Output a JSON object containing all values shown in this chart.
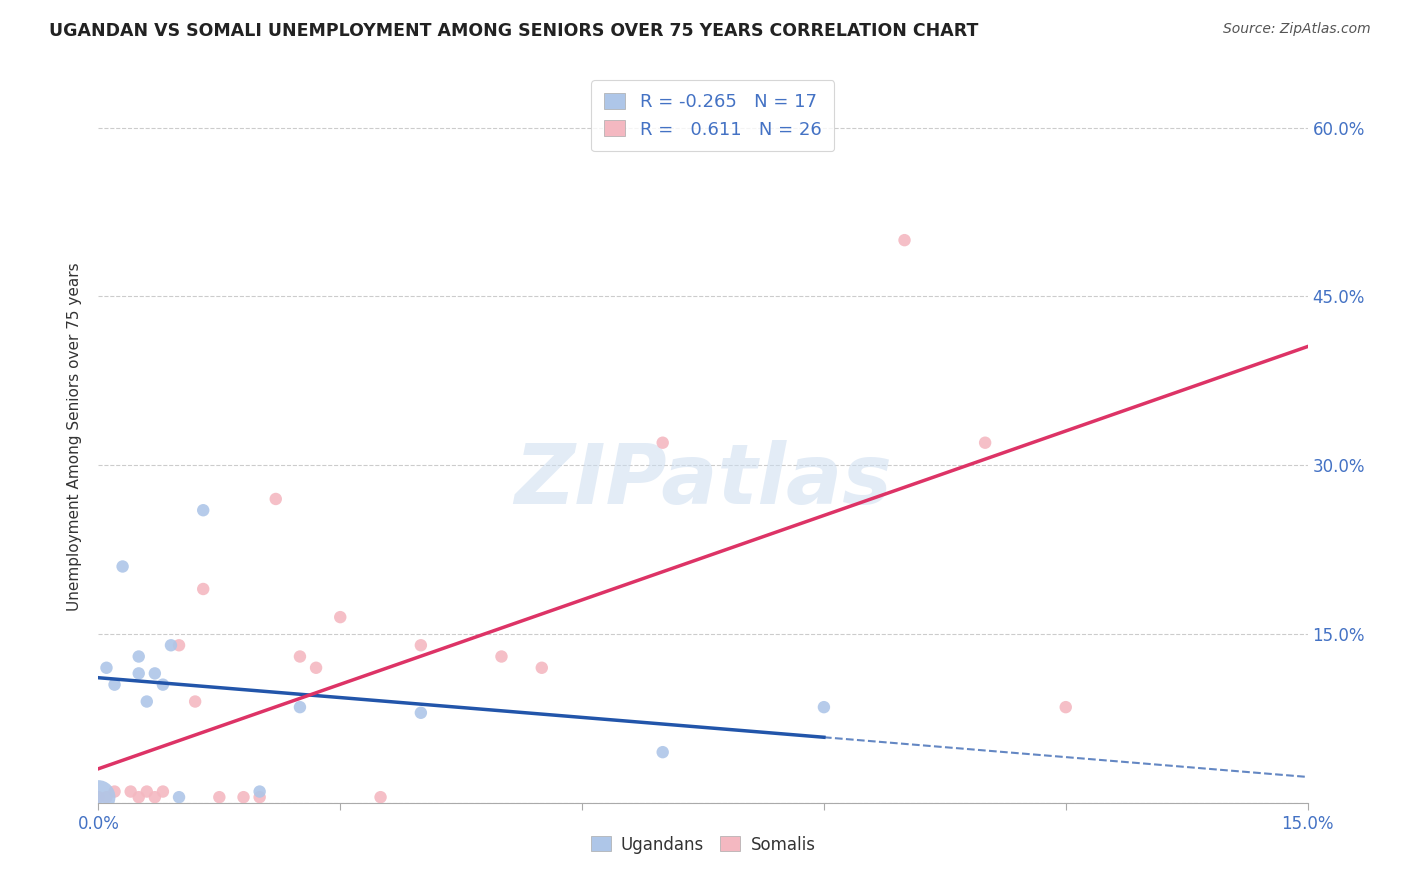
{
  "title": "UGANDAN VS SOMALI UNEMPLOYMENT AMONG SENIORS OVER 75 YEARS CORRELATION CHART",
  "source": "Source: ZipAtlas.com",
  "ylabel": "Unemployment Among Seniors over 75 years",
  "xlim": [
    0.0,
    0.15
  ],
  "ylim": [
    0.0,
    0.65
  ],
  "xticks": [
    0.0,
    0.03,
    0.06,
    0.09,
    0.12,
    0.15
  ],
  "yticks": [
    0.0,
    0.15,
    0.3,
    0.45,
    0.6
  ],
  "ugandan_R": -0.265,
  "ugandan_N": 17,
  "somali_R": 0.611,
  "somali_N": 26,
  "ugandan_color": "#aec6e8",
  "somali_color": "#f4b8c1",
  "ugandan_line_color": "#2255aa",
  "somali_line_color": "#dd3366",
  "ugandan_x": [
    0.0,
    0.001,
    0.002,
    0.003,
    0.005,
    0.005,
    0.006,
    0.007,
    0.008,
    0.009,
    0.01,
    0.013,
    0.02,
    0.025,
    0.04,
    0.07,
    0.09
  ],
  "ugandan_y": [
    0.005,
    0.12,
    0.105,
    0.21,
    0.13,
    0.115,
    0.09,
    0.115,
    0.105,
    0.14,
    0.005,
    0.26,
    0.01,
    0.085,
    0.08,
    0.045,
    0.085
  ],
  "ugandan_sizes": [
    600,
    80,
    80,
    80,
    80,
    80,
    80,
    80,
    80,
    80,
    80,
    80,
    80,
    80,
    80,
    80,
    80
  ],
  "somali_x": [
    0.0,
    0.001,
    0.002,
    0.004,
    0.005,
    0.006,
    0.007,
    0.008,
    0.01,
    0.012,
    0.013,
    0.015,
    0.018,
    0.02,
    0.022,
    0.025,
    0.027,
    0.03,
    0.035,
    0.04,
    0.05,
    0.055,
    0.07,
    0.1,
    0.11,
    0.12
  ],
  "somali_y": [
    0.005,
    0.005,
    0.01,
    0.01,
    0.005,
    0.01,
    0.005,
    0.01,
    0.14,
    0.09,
    0.19,
    0.005,
    0.005,
    0.005,
    0.27,
    0.13,
    0.12,
    0.165,
    0.005,
    0.14,
    0.13,
    0.12,
    0.32,
    0.5,
    0.32,
    0.085
  ],
  "somali_sizes": [
    80,
    80,
    80,
    80,
    80,
    80,
    80,
    80,
    80,
    80,
    80,
    80,
    80,
    80,
    80,
    80,
    80,
    80,
    80,
    80,
    80,
    80,
    80,
    80,
    80,
    80
  ],
  "watermark_text": "ZIPatlas",
  "watermark_color": "#ccddf0",
  "background_color": "#ffffff",
  "grid_color": "#cccccc",
  "tick_color": "#4472c4",
  "label_color": "#333333"
}
